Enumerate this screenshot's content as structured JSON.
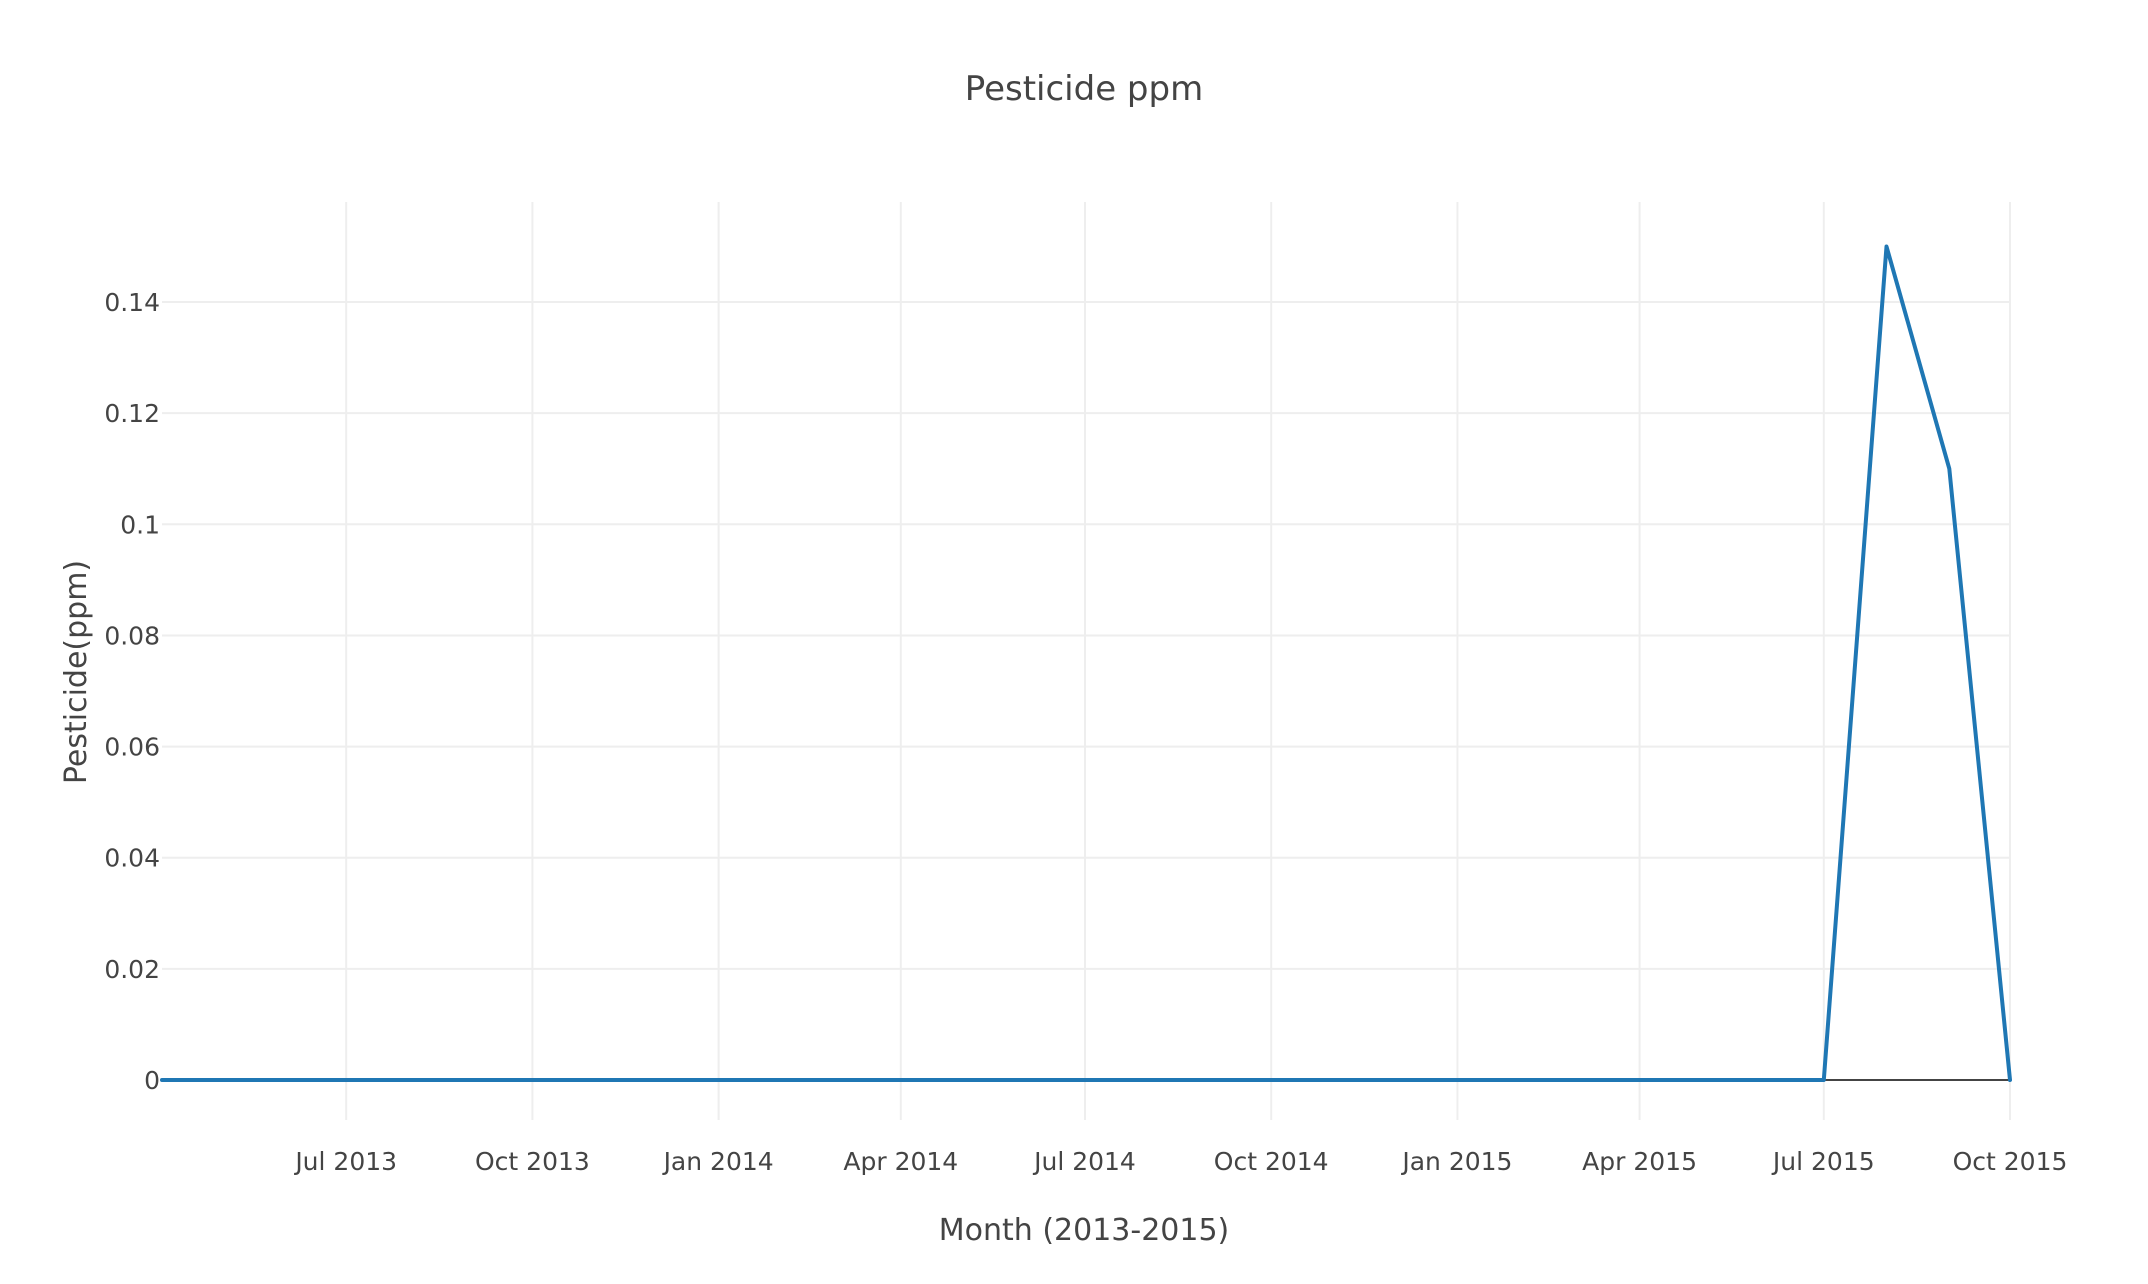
{
  "chart_data": {
    "type": "line",
    "title": "Pesticide ppm",
    "xlabel": "Month (2013-2015)",
    "ylabel": "Pesticide(ppm)",
    "x_axis_type": "date",
    "xlim": [
      "2013-04-01",
      "2015-10-01"
    ],
    "ylim": [
      -0.0072,
      0.158
    ],
    "x_ticks": [
      {
        "value": "2013-07-01",
        "label": "Jul 2013"
      },
      {
        "value": "2013-10-01",
        "label": "Oct 2013"
      },
      {
        "value": "2014-01-01",
        "label": "Jan 2014"
      },
      {
        "value": "2014-04-01",
        "label": "Apr 2014"
      },
      {
        "value": "2014-07-01",
        "label": "Jul 2014"
      },
      {
        "value": "2014-10-01",
        "label": "Oct 2014"
      },
      {
        "value": "2015-01-01",
        "label": "Jan 2015"
      },
      {
        "value": "2015-04-01",
        "label": "Apr 2015"
      },
      {
        "value": "2015-07-01",
        "label": "Jul 2015"
      },
      {
        "value": "2015-10-01",
        "label": "Oct 2015"
      }
    ],
    "y_ticks": [
      {
        "value": 0,
        "label": "0"
      },
      {
        "value": 0.02,
        "label": "0.02"
      },
      {
        "value": 0.04,
        "label": "0.04"
      },
      {
        "value": 0.06,
        "label": "0.06"
      },
      {
        "value": 0.08,
        "label": "0.08"
      },
      {
        "value": 0.1,
        "label": "0.1"
      },
      {
        "value": 0.12,
        "label": "0.12"
      },
      {
        "value": 0.14,
        "label": "0.14"
      }
    ],
    "grid": true,
    "legend": "none",
    "series": [
      {
        "color": "#1f77b4",
        "x": [
          "2013-04-01",
          "2015-07-01",
          "2015-08-01",
          "2015-09-01",
          "2015-10-01"
        ],
        "y": [
          0,
          0,
          0.15,
          0.11,
          0
        ]
      }
    ]
  }
}
